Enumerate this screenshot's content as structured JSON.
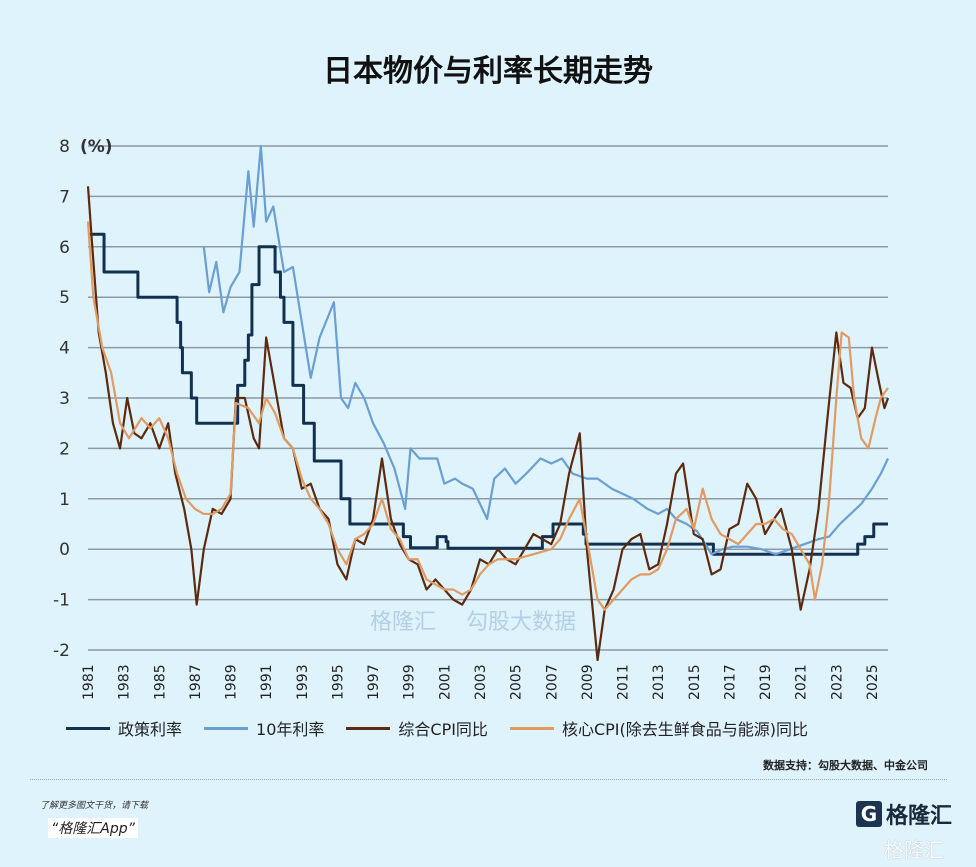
{
  "title": "日本物价与利率长期走势",
  "chart_data": {
    "type": "line",
    "title": "日本物价与利率长期走势",
    "ylabel": "(%)",
    "ylim": [
      -2,
      8
    ],
    "yticks": [
      8,
      7,
      6,
      5,
      4,
      3,
      2,
      1,
      0,
      -1,
      -2
    ],
    "xlim": [
      1981,
      2025.9
    ],
    "xticks": [
      "1981",
      "1983",
      "1985",
      "1987",
      "1989",
      "1991",
      "1993",
      "1995",
      "1997",
      "1999",
      "2001",
      "2003",
      "2005",
      "2007",
      "2009",
      "2011",
      "2013",
      "2015",
      "2017",
      "2019",
      "2021",
      "2023",
      "2025"
    ],
    "grid": true,
    "legend_position": "bottom",
    "series": [
      {
        "name": "政策利率",
        "color": "#12304f",
        "step": true,
        "x": [
          1981,
          1981.9,
          1983.8,
          1986.0,
          1986.2,
          1986.3,
          1986.8,
          1987.1,
          1989.4,
          1989.8,
          1990.0,
          1990.2,
          1990.6,
          1991.5,
          1991.8,
          1992.0,
          1992.5,
          1993.1,
          1993.7,
          1995.2,
          1995.7,
          1998.7,
          1999.1,
          2000.6,
          2001.1,
          2001.2,
          2006.5,
          2007.1,
          2008.8,
          2008.95,
          2016.1,
          2024.2,
          2024.6,
          2025.1,
          2025.9
        ],
        "y": [
          6.25,
          5.5,
          5.0,
          4.5,
          4.0,
          3.5,
          3.0,
          2.5,
          3.25,
          3.75,
          4.25,
          5.25,
          6.0,
          5.5,
          5.0,
          4.5,
          3.25,
          2.5,
          1.75,
          1.0,
          0.5,
          0.25,
          0.03,
          0.25,
          0.15,
          0.02,
          0.25,
          0.5,
          0.3,
          0.1,
          -0.1,
          0.1,
          0.25,
          0.5,
          0.5
        ]
      },
      {
        "name": "10年利率",
        "color": "#6a9fd3",
        "step": false,
        "x": [
          1987.5,
          1987.8,
          1988.2,
          1988.6,
          1989.0,
          1989.5,
          1990.0,
          1990.3,
          1990.7,
          1991.0,
          1991.4,
          1992.0,
          1992.5,
          1993.0,
          1993.5,
          1994.0,
          1994.8,
          1995.2,
          1995.6,
          1996.0,
          1996.5,
          1997.0,
          1997.6,
          1998.2,
          1998.8,
          1999.1,
          1999.6,
          2000.0,
          2000.6,
          2001.0,
          2001.6,
          2002.0,
          2002.6,
          2003.4,
          2003.8,
          2004.4,
          2005.0,
          2005.6,
          2006.4,
          2007.0,
          2007.6,
          2008.2,
          2009.0,
          2009.6,
          2010.4,
          2011.0,
          2011.6,
          2012.4,
          2013.0,
          2013.5,
          2014.0,
          2014.6,
          2015.2,
          2016.0,
          2016.6,
          2017.2,
          2018.0,
          2018.8,
          2019.6,
          2020.4,
          2021.2,
          2022.0,
          2022.6,
          2023.2,
          2023.8,
          2024.4,
          2025.0,
          2025.5,
          2025.9
        ],
        "y": [
          6.0,
          5.1,
          5.7,
          4.7,
          5.2,
          5.5,
          7.5,
          6.4,
          8.0,
          6.5,
          6.8,
          5.5,
          5.6,
          4.5,
          3.4,
          4.2,
          4.9,
          3.0,
          2.8,
          3.3,
          3.0,
          2.5,
          2.1,
          1.6,
          0.8,
          2.0,
          1.8,
          1.8,
          1.8,
          1.3,
          1.4,
          1.3,
          1.2,
          0.6,
          1.4,
          1.6,
          1.3,
          1.5,
          1.8,
          1.7,
          1.8,
          1.5,
          1.4,
          1.4,
          1.2,
          1.1,
          1.0,
          0.8,
          0.7,
          0.8,
          0.6,
          0.5,
          0.35,
          -0.1,
          0.0,
          0.05,
          0.05,
          0.0,
          -0.1,
          0.0,
          0.1,
          0.2,
          0.25,
          0.5,
          0.7,
          0.9,
          1.2,
          1.5,
          1.8
        ]
      },
      {
        "name": "综合CPI同比",
        "color": "#5c2a0e",
        "step": false,
        "x": [
          1981,
          1981.2,
          1981.6,
          1982.0,
          1982.4,
          1982.8,
          1983.2,
          1983.6,
          1984.0,
          1984.5,
          1985.0,
          1985.5,
          1985.9,
          1986.4,
          1986.8,
          1987.1,
          1987.5,
          1988.0,
          1988.5,
          1989.0,
          1989.3,
          1989.8,
          1990.3,
          1990.6,
          1991.0,
          1991.5,
          1992.0,
          1992.5,
          1993.0,
          1993.5,
          1994.0,
          1994.5,
          1995.0,
          1995.5,
          1996.0,
          1996.5,
          1997.0,
          1997.5,
          1998.0,
          1998.5,
          1999.0,
          1999.5,
          2000.0,
          2000.5,
          2001.0,
          2001.5,
          2002.0,
          2002.5,
          2003.0,
          2003.5,
          2004.0,
          2004.5,
          2005.0,
          2005.5,
          2006.0,
          2006.5,
          2007.0,
          2007.5,
          2008.0,
          2008.6,
          2009.0,
          2009.6,
          2010.0,
          2010.5,
          2011.0,
          2011.5,
          2012.0,
          2012.5,
          2013.0,
          2013.5,
          2014.0,
          2014.4,
          2015.0,
          2015.5,
          2016.0,
          2016.5,
          2017.0,
          2017.5,
          2018.0,
          2018.5,
          2019.0,
          2019.5,
          2019.9,
          2020.5,
          2021.0,
          2021.5,
          2022.0,
          2022.5,
          2023.0,
          2023.4,
          2023.8,
          2024.2,
          2024.6,
          2025.0,
          2025.4,
          2025.7,
          2025.9
        ],
        "y": [
          7.2,
          6.2,
          4.3,
          3.5,
          2.5,
          2.0,
          3.0,
          2.3,
          2.2,
          2.5,
          2.0,
          2.5,
          1.5,
          0.8,
          0.0,
          -1.1,
          0.0,
          0.8,
          0.7,
          1.0,
          3.0,
          3.0,
          2.2,
          2.0,
          4.2,
          3.2,
          2.2,
          2.0,
          1.2,
          1.3,
          0.8,
          0.6,
          -0.3,
          -0.6,
          0.2,
          0.1,
          0.6,
          1.8,
          0.6,
          0.1,
          -0.2,
          -0.3,
          -0.8,
          -0.6,
          -0.8,
          -1.0,
          -1.1,
          -0.8,
          -0.2,
          -0.3,
          0.0,
          -0.2,
          -0.3,
          0.0,
          0.3,
          0.2,
          0.1,
          0.5,
          1.5,
          2.3,
          0.0,
          -2.2,
          -1.2,
          -0.8,
          0.0,
          0.2,
          0.3,
          -0.4,
          -0.3,
          0.5,
          1.5,
          1.7,
          0.3,
          0.2,
          -0.5,
          -0.4,
          0.4,
          0.5,
          1.3,
          1.0,
          0.3,
          0.6,
          0.8,
          0.0,
          -1.2,
          -0.4,
          0.8,
          2.6,
          4.3,
          3.3,
          3.2,
          2.6,
          2.8,
          4.0,
          3.3,
          2.8,
          3.0
        ]
      },
      {
        "name": "核心CPI(除去生鲜食品与能源)同比",
        "color": "#e09a62",
        "step": false,
        "x": [
          1981,
          1981.3,
          1981.8,
          1982.3,
          1982.8,
          1983.3,
          1984.0,
          1984.5,
          1985.0,
          1985.5,
          1986.0,
          1986.5,
          1987.0,
          1987.5,
          1988.0,
          1988.5,
          1989.0,
          1989.3,
          1990.0,
          1990.6,
          1991.0,
          1991.5,
          1992.0,
          1992.5,
          1993.0,
          1993.5,
          1994.0,
          1994.5,
          1995.0,
          1995.5,
          1996.0,
          1996.5,
          1997.0,
          1997.5,
          1998.0,
          1998.5,
          1999.0,
          1999.5,
          2000.0,
          2000.5,
          2001.0,
          2001.5,
          2002.0,
          2002.5,
          2003.0,
          2003.5,
          2004.0,
          2005.0,
          2006.0,
          2007.0,
          2007.5,
          2008.0,
          2008.6,
          2009.0,
          2009.6,
          2010.0,
          2010.5,
          2011.0,
          2011.5,
          2012.0,
          2012.5,
          2013.0,
          2013.5,
          2014.0,
          2014.6,
          2015.0,
          2015.5,
          2016.0,
          2016.5,
          2017.0,
          2017.5,
          2018.0,
          2018.5,
          2019.0,
          2019.5,
          2020.0,
          2020.5,
          2021.0,
          2021.5,
          2021.8,
          2022.2,
          2022.6,
          2023.0,
          2023.3,
          2023.7,
          2024.0,
          2024.4,
          2024.8,
          2025.2,
          2025.5,
          2025.9
        ],
        "y": [
          6.5,
          5.0,
          4.0,
          3.5,
          2.5,
          2.2,
          2.6,
          2.4,
          2.6,
          2.2,
          1.5,
          1.0,
          0.8,
          0.7,
          0.7,
          0.8,
          1.1,
          2.9,
          2.8,
          2.5,
          3.0,
          2.7,
          2.2,
          2.0,
          1.4,
          1.0,
          0.8,
          0.5,
          0.0,
          -0.3,
          0.2,
          0.3,
          0.5,
          1.0,
          0.4,
          0.2,
          -0.2,
          -0.2,
          -0.6,
          -0.7,
          -0.8,
          -0.8,
          -0.9,
          -0.8,
          -0.5,
          -0.3,
          -0.2,
          -0.2,
          -0.1,
          0.0,
          0.2,
          0.6,
          1.0,
          0.2,
          -1.0,
          -1.2,
          -1.0,
          -0.8,
          -0.6,
          -0.5,
          -0.5,
          -0.4,
          0.0,
          0.6,
          0.8,
          0.4,
          1.2,
          0.6,
          0.3,
          0.2,
          0.1,
          0.3,
          0.5,
          0.5,
          0.6,
          0.4,
          0.3,
          0.0,
          -0.3,
          -1.0,
          -0.3,
          1.0,
          3.0,
          4.3,
          4.2,
          3.0,
          2.2,
          2.0,
          2.6,
          3.0,
          3.2
        ]
      }
    ]
  },
  "watermark": {
    "brand": "格隆汇",
    "partner": "勾股大数据"
  },
  "source": "数据支持：勾股大数据、中金公司",
  "footer": {
    "promo_line": "了解更多图文干货，请下载",
    "app_name": "“格隆汇App”",
    "logo_text": "格隆汇",
    "corner_watermark": "格隆汇"
  }
}
